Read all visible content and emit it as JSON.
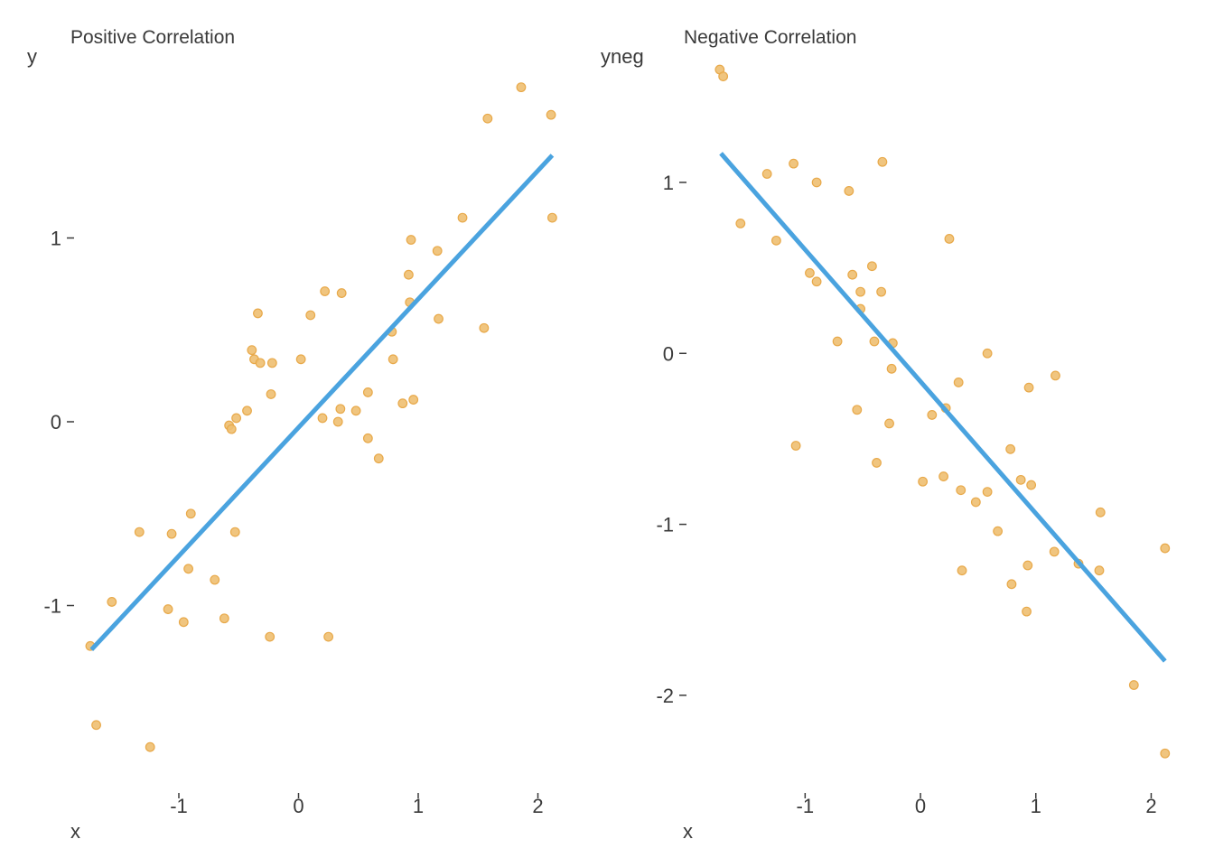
{
  "colors": {
    "points": "#eebf71",
    "line": "#4aa3df",
    "text": "#3a3a3a"
  },
  "chart_data": [
    {
      "type": "scatter",
      "title": "Positive Correlation",
      "xlabel": "x",
      "ylabel": "y",
      "xlim": [
        -1.8,
        2.2
      ],
      "ylim": [
        -2.0,
        2.0
      ],
      "xticks": [
        -1,
        0,
        1,
        2
      ],
      "yticks": [
        -1,
        0,
        1
      ],
      "grid": false,
      "legend": "none",
      "fit_line": {
        "x": [
          -1.73,
          2.12
        ],
        "y": [
          -1.24,
          1.45
        ]
      },
      "x": [
        -1.74,
        -1.69,
        -1.56,
        -1.33,
        -1.24,
        -1.09,
        -1.06,
        -0.96,
        -0.92,
        -0.9,
        -0.7,
        -0.58,
        -0.62,
        -0.56,
        -0.52,
        -0.53,
        -0.43,
        -0.37,
        -0.39,
        -0.34,
        -0.32,
        -0.23,
        -0.22,
        -0.24,
        0.02,
        0.1,
        0.2,
        0.22,
        0.25,
        0.33,
        0.35,
        0.36,
        0.48,
        0.58,
        0.58,
        0.67,
        0.78,
        0.79,
        0.87,
        0.92,
        0.93,
        0.94,
        0.96,
        1.16,
        1.17,
        1.37,
        1.55,
        1.58,
        1.86,
        2.11,
        2.12
      ],
      "y": [
        -1.22,
        -1.65,
        -0.98,
        -0.6,
        -1.77,
        -1.02,
        -0.61,
        -1.09,
        -0.8,
        -0.5,
        -0.86,
        -0.02,
        -1.07,
        -0.04,
        0.02,
        -0.6,
        0.06,
        0.34,
        0.39,
        0.59,
        0.32,
        0.15,
        0.32,
        -1.17,
        0.34,
        0.58,
        0.02,
        0.71,
        -1.17,
        0.0,
        0.07,
        0.7,
        0.06,
        0.16,
        -0.09,
        -0.2,
        0.49,
        0.34,
        0.1,
        0.8,
        0.65,
        0.99,
        0.12,
        0.93,
        0.56,
        1.11,
        0.51,
        1.65,
        1.82,
        1.67,
        1.11
      ]
    },
    {
      "type": "scatter",
      "title": "Negative Correlation",
      "xlabel": "x",
      "ylabel": "yneg",
      "xlim": [
        -1.95,
        2.2
      ],
      "ylim": [
        -2.55,
        1.75
      ],
      "xticks": [
        -1,
        0,
        1,
        2
      ],
      "yticks": [
        -2,
        -1,
        0,
        1
      ],
      "grid": false,
      "legend": "none",
      "fit_line": {
        "x": [
          -1.73,
          2.12
        ],
        "y": [
          1.17,
          -1.8
        ]
      },
      "x": [
        -1.74,
        -1.71,
        -1.56,
        -1.33,
        -1.25,
        -1.1,
        -1.08,
        -0.96,
        -0.9,
        -0.9,
        -0.72,
        -0.62,
        -0.59,
        -0.55,
        -0.52,
        -0.52,
        -0.42,
        -0.4,
        -0.38,
        -0.34,
        -0.33,
        -0.27,
        -0.25,
        -0.24,
        0.02,
        0.1,
        0.2,
        0.22,
        0.25,
        0.33,
        0.35,
        0.36,
        0.48,
        0.58,
        0.58,
        0.67,
        0.78,
        0.79,
        0.87,
        0.92,
        0.93,
        0.94,
        0.96,
        1.16,
        1.17,
        1.37,
        1.55,
        1.56,
        1.85,
        2.12,
        2.12
      ],
      "y": [
        1.66,
        1.62,
        0.76,
        1.05,
        0.66,
        1.11,
        -0.54,
        0.47,
        1.0,
        0.42,
        0.07,
        0.95,
        0.46,
        -0.33,
        0.36,
        0.26,
        0.51,
        0.07,
        -0.64,
        0.36,
        1.12,
        -0.41,
        -0.09,
        0.06,
        -0.75,
        -0.36,
        -0.72,
        -0.32,
        0.67,
        -0.17,
        -0.8,
        -1.27,
        -0.87,
        -0.81,
        0.0,
        -1.04,
        -0.56,
        -1.35,
        -0.74,
        -1.51,
        -1.24,
        -0.2,
        -0.77,
        -1.16,
        -0.13,
        -1.23,
        -1.27,
        -0.93,
        -1.94,
        -1.14,
        -2.34
      ]
    }
  ]
}
